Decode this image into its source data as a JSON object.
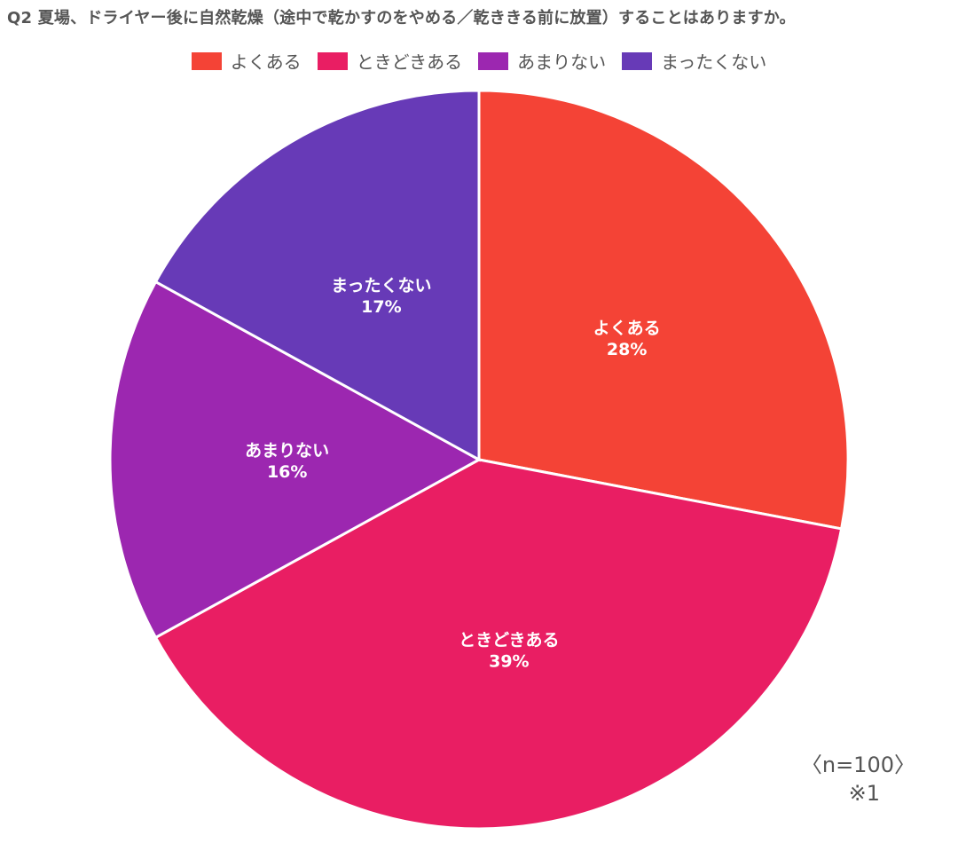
{
  "chart_data": {
    "type": "pie",
    "title": "Q2 夏場、ドライヤー後に自然乾燥（途中で乾かすのをやめる／乾ききる前に放置）することはありますか。",
    "categories": [
      "よくある",
      "ときどきある",
      "あまりない",
      "まったくない"
    ],
    "values": [
      28,
      39,
      16,
      17
    ],
    "value_labels": [
      "28%",
      "39%",
      "16%",
      "17%"
    ],
    "colors": [
      "#F44336",
      "#E91E63",
      "#9C27B0",
      "#673AB7"
    ],
    "legend_position": "top",
    "start_angle": "12 o'clock",
    "direction": "clockwise"
  },
  "notes": {
    "sample": "〈n=100〉",
    "footnote": "※1"
  }
}
